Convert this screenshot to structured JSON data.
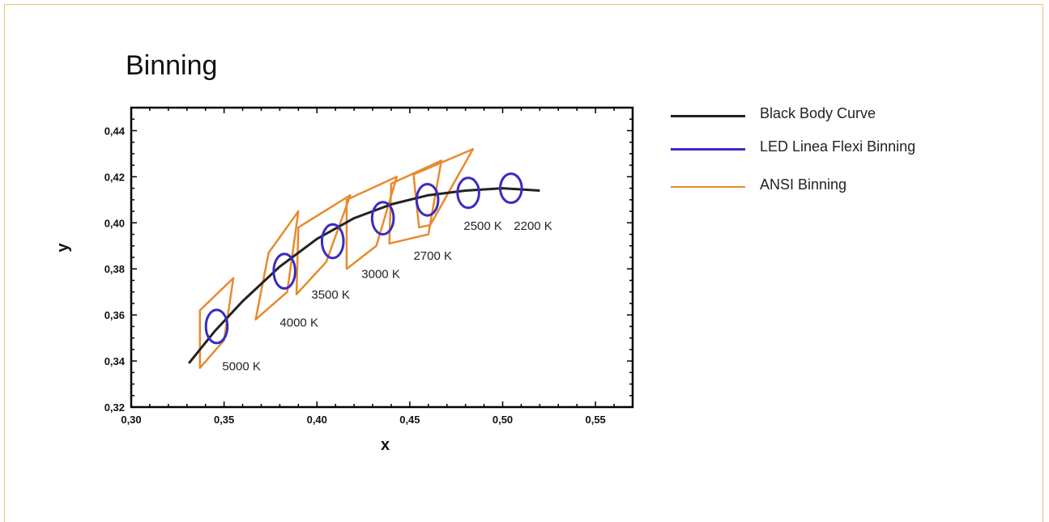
{
  "chart_data": {
    "type": "line",
    "title": "Binning",
    "xlabel": "x",
    "ylabel": "y",
    "xlim": [
      0.3,
      0.57
    ],
    "ylim": [
      0.32,
      0.45
    ],
    "x_ticks": [
      "0,30",
      "0,35",
      "0,40",
      "0,45",
      "0,50",
      "0,55"
    ],
    "x_tick_values": [
      0.3,
      0.35,
      0.4,
      0.45,
      0.5,
      0.55
    ],
    "y_ticks": [
      "0,32",
      "0,34",
      "0,36",
      "0,38",
      "0,40",
      "0,42",
      "0,44"
    ],
    "y_tick_values": [
      0.32,
      0.34,
      0.36,
      0.38,
      0.4,
      0.42,
      0.44
    ],
    "legend": {
      "placement": "right",
      "entries": [
        {
          "label": "Black Body Curve",
          "color": "#222222"
        },
        {
          "label": "LED Linea Flexi Binning",
          "color": "#3a2cc0"
        },
        {
          "label": "ANSI Binning",
          "color": "#e88a2e"
        }
      ]
    },
    "series": [
      {
        "name": "Black Body Curve",
        "color": "#222222",
        "points": [
          [
            0.331,
            0.339
          ],
          [
            0.345,
            0.353
          ],
          [
            0.36,
            0.366
          ],
          [
            0.38,
            0.381
          ],
          [
            0.4,
            0.393
          ],
          [
            0.42,
            0.402
          ],
          [
            0.44,
            0.408
          ],
          [
            0.46,
            0.412
          ],
          [
            0.48,
            0.414
          ],
          [
            0.5,
            0.415
          ],
          [
            0.52,
            0.414
          ]
        ]
      },
      {
        "name": "LED Linea Flexi Binning",
        "color": "#3a2cc0",
        "ellipses": [
          {
            "cct": "5000 K",
            "cx": 0.346,
            "cy": 0.355,
            "rx": 0.0058,
            "ry": 0.0072
          },
          {
            "cct": "4000 K",
            "cx": 0.3825,
            "cy": 0.379,
            "rx": 0.0058,
            "ry": 0.0075
          },
          {
            "cct": "3500 K",
            "cx": 0.4085,
            "cy": 0.392,
            "rx": 0.0058,
            "ry": 0.0073
          },
          {
            "cct": "3000 K",
            "cx": 0.4355,
            "cy": 0.402,
            "rx": 0.0058,
            "ry": 0.007
          },
          {
            "cct": "2700 K",
            "cx": 0.4595,
            "cy": 0.41,
            "rx": 0.0058,
            "ry": 0.0068
          },
          {
            "cct": "2500 K",
            "cx": 0.4815,
            "cy": 0.413,
            "rx": 0.0058,
            "ry": 0.0065
          },
          {
            "cct": "2200 K",
            "cx": 0.5045,
            "cy": 0.415,
            "rx": 0.0058,
            "ry": 0.0063
          }
        ]
      },
      {
        "name": "ANSI Binning",
        "color": "#e88a2e",
        "quadrangles": [
          {
            "cct": "5000 K",
            "points": [
              [
                0.337,
                0.362
              ],
              [
                0.355,
                0.376
              ],
              [
                0.35,
                0.349
              ],
              [
                0.337,
                0.337
              ]
            ]
          },
          {
            "cct": "4000 K",
            "points": [
              [
                0.374,
                0.387
              ],
              [
                0.39,
                0.405
              ],
              [
                0.384,
                0.37
              ],
              [
                0.367,
                0.358
              ]
            ]
          },
          {
            "cct": "3500 K",
            "points": [
              [
                0.39,
                0.398
              ],
              [
                0.418,
                0.412
              ],
              [
                0.405,
                0.383
              ],
              [
                0.389,
                0.369
              ]
            ]
          },
          {
            "cct": "3000 K",
            "points": [
              [
                0.416,
                0.41
              ],
              [
                0.443,
                0.42
              ],
              [
                0.432,
                0.39
              ],
              [
                0.416,
                0.38
              ]
            ]
          },
          {
            "cct": "2700 K",
            "points": [
              [
                0.44,
                0.417
              ],
              [
                0.467,
                0.427
              ],
              [
                0.46,
                0.395
              ],
              [
                0.439,
                0.391
              ]
            ]
          },
          {
            "cct": "2500 K",
            "points": [
              [
                0.452,
                0.421
              ],
              [
                0.484,
                0.432
              ],
              [
                0.461,
                0.399
              ],
              [
                0.455,
                0.398
              ]
            ]
          }
        ]
      }
    ],
    "annotations": [
      {
        "text": "5000 K",
        "x": 0.349,
        "y": 0.336
      },
      {
        "text": "4000 K",
        "x": 0.38,
        "y": 0.355
      },
      {
        "text": "3500 K",
        "x": 0.397,
        "y": 0.367
      },
      {
        "text": "3000 K",
        "x": 0.424,
        "y": 0.376
      },
      {
        "text": "2700 K",
        "x": 0.452,
        "y": 0.384
      },
      {
        "text": "2500 K",
        "x": 0.479,
        "y": 0.397
      },
      {
        "text": "2200 K",
        "x": 0.506,
        "y": 0.397
      }
    ]
  }
}
